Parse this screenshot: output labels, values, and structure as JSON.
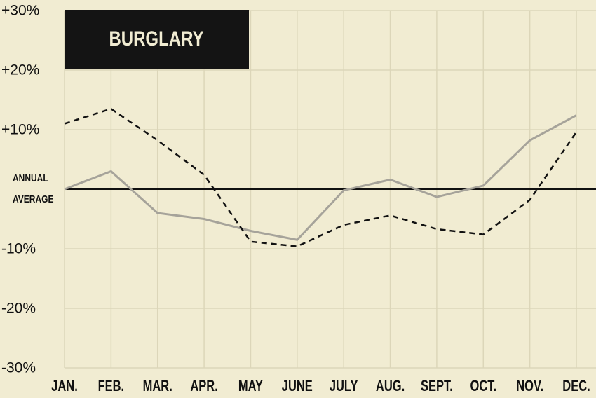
{
  "chart_data": {
    "type": "line",
    "title": "BURGLARY",
    "categories": [
      "JAN.",
      "FEB.",
      "MAR.",
      "APR.",
      "MAY",
      "JUNE",
      "JULY",
      "AUG.",
      "SEPT.",
      "OCT.",
      "NOV.",
      "DEC."
    ],
    "series": [
      {
        "color": "#a6a39a",
        "dashed": false,
        "values": [
          0,
          3,
          -4,
          -5,
          -7,
          -8.5,
          -0.2,
          1.6,
          -1.3,
          0.6,
          8.2,
          12.4
        ]
      },
      {
        "color": "#111111",
        "dashed": true,
        "values": [
          11,
          13.5,
          8.2,
          2.4,
          -8.8,
          -9.6,
          -6,
          -4.4,
          -6.7,
          -7.6,
          -1.8,
          9.6
        ]
      }
    ],
    "ylim": [
      -30,
      30
    ],
    "yticks": [
      {
        "value": 30,
        "label": "+30%"
      },
      {
        "value": 20,
        "label": "+20%"
      },
      {
        "value": 10,
        "label": "+10%"
      },
      {
        "value": 0,
        "label": "ANNUAL AVERAGE"
      },
      {
        "value": -10,
        "label": "-10%"
      },
      {
        "value": -20,
        "label": "-20%"
      },
      {
        "value": -30,
        "label": "-30%"
      }
    ],
    "grid": true
  }
}
